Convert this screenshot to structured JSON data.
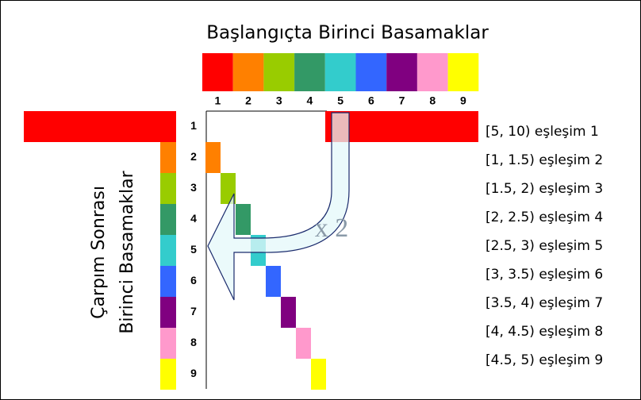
{
  "title": "Başlangıçta Birinci Basamaklar",
  "columns": [
    "1",
    "2",
    "3",
    "4",
    "5",
    "6",
    "7",
    "8",
    "9"
  ],
  "rows": [
    "1",
    "2",
    "3",
    "4",
    "5",
    "6",
    "7",
    "8",
    "9"
  ],
  "colors": [
    "#ff0000",
    "#ff8000",
    "#99cc00",
    "#339966",
    "#33cccc",
    "#3366ff",
    "#800080",
    "#ff99cc",
    "#ffff00"
  ],
  "vertical_label": [
    "Çarpım Sonrası",
    "Birinci Basamaklar"
  ],
  "multiplier": "x 2",
  "matches": [
    "[5, 10) eşleşim 1",
    "[1, 1.5) eşleşim 2",
    "[1.5, 2) eşleşim 3",
    "[2, 2.5) eşleşim 4",
    "[2.5, 3) eşleşim 5",
    "[3, 3.5) eşleşim 6",
    "[3.5, 4) eşleşim 7",
    "[4, 4.5) eşleşim 8",
    "[4.5, 5) eşleşim 9"
  ]
}
